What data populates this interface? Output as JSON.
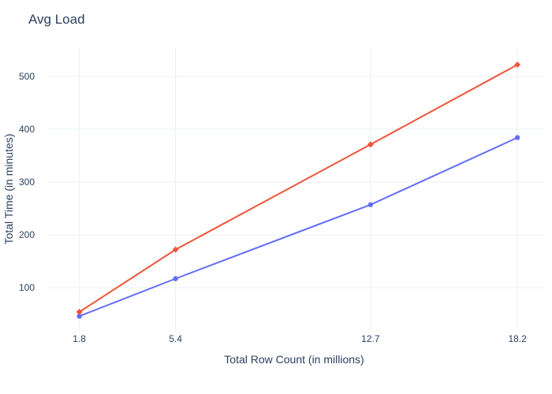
{
  "chart_data": {
    "type": "line",
    "title": "Avg Load",
    "xlabel": "Total Row Count (in millions)",
    "ylabel": "Total Time (in minutes)",
    "x": [
      1.8,
      5.4,
      12.7,
      18.2
    ],
    "x_tick_labels": [
      "1.8",
      "5.4",
      "12.7",
      "18.2"
    ],
    "y_ticks": [
      100,
      200,
      300,
      400,
      500
    ],
    "y_tick_labels": [
      "100",
      "200",
      "300",
      "400",
      "500"
    ],
    "xlim": [
      0.6,
      19.2
    ],
    "ylim": [
      18,
      555
    ],
    "grid": true,
    "series": [
      {
        "values": [
          46,
          117,
          257,
          384
        ],
        "color": "#636efa",
        "marker": "circle"
      },
      {
        "values": [
          54,
          172,
          371,
          522
        ],
        "color": "#ef553b",
        "marker": "diamond"
      }
    ]
  }
}
